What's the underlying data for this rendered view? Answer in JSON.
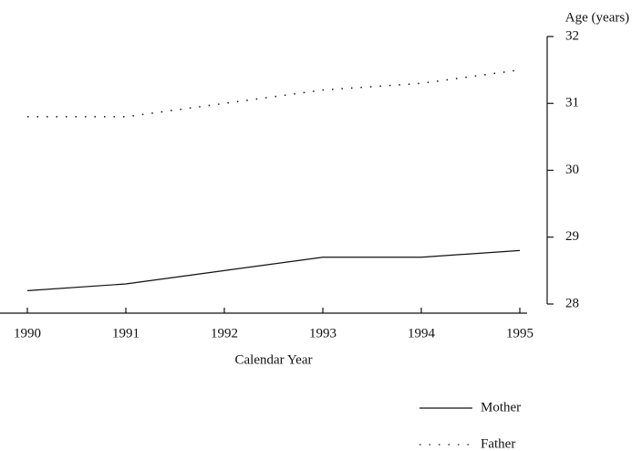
{
  "chart_data": {
    "type": "line",
    "y_axis_label": "Age (years)",
    "x_axis_label": "Calendar Year",
    "x": [
      1990,
      1991,
      1992,
      1993,
      1994,
      1995
    ],
    "series": [
      {
        "name": "Mother",
        "color": "#111111",
        "style": "solid",
        "values": [
          28.2,
          28.3,
          28.5,
          28.7,
          28.7,
          28.8
        ]
      },
      {
        "name": "Father",
        "color": "#111111",
        "style": "dotted",
        "values": [
          30.8,
          30.8,
          31.0,
          31.2,
          31.3,
          31.5
        ]
      }
    ],
    "xlim": [
      1990,
      1995
    ],
    "xticks": [
      1990,
      1991,
      1992,
      1993,
      1994,
      1995
    ],
    "ylim": [
      28,
      32
    ],
    "yticks": [
      28,
      29,
      30,
      31,
      32
    ],
    "grid": false,
    "legend": "bottom-right"
  }
}
